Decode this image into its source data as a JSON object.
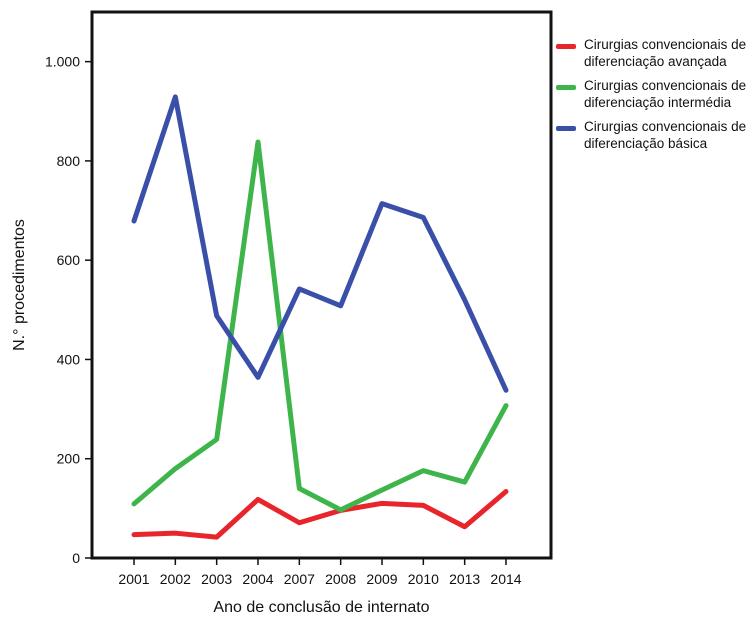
{
  "chart_data": {
    "type": "line",
    "title": "",
    "xlabel": "Ano de conclusão de internato",
    "ylabel": "N.° procedimentos",
    "categories": [
      "2001",
      "2002",
      "2003",
      "2004",
      "2007",
      "2008",
      "2009",
      "2010",
      "2013",
      "2014"
    ],
    "ylim": [
      0,
      1100
    ],
    "yticks": [
      0,
      200,
      400,
      600,
      800,
      1000
    ],
    "ytick_labels": [
      "0",
      "200",
      "400",
      "600",
      "800",
      "1.000"
    ],
    "grid": false,
    "legend_position": "right",
    "series": [
      {
        "name": "Cirurgias convencionais de diferenciação avançada",
        "color": "#e8252a",
        "values": [
          47,
          50,
          42,
          118,
          71,
          96,
          110,
          106,
          63,
          134
        ]
      },
      {
        "name": "Cirurgias convencionais de diferenciação intermédia",
        "color": "#3db54a",
        "values": [
          109,
          180,
          239,
          838,
          140,
          97,
          137,
          176,
          153,
          307
        ]
      },
      {
        "name": "Cirurgias convencionais de diferenciação básica",
        "color": "#3a4fa8",
        "values": [
          679,
          929,
          488,
          364,
          542,
          508,
          714,
          686,
          520,
          338
        ]
      }
    ]
  }
}
